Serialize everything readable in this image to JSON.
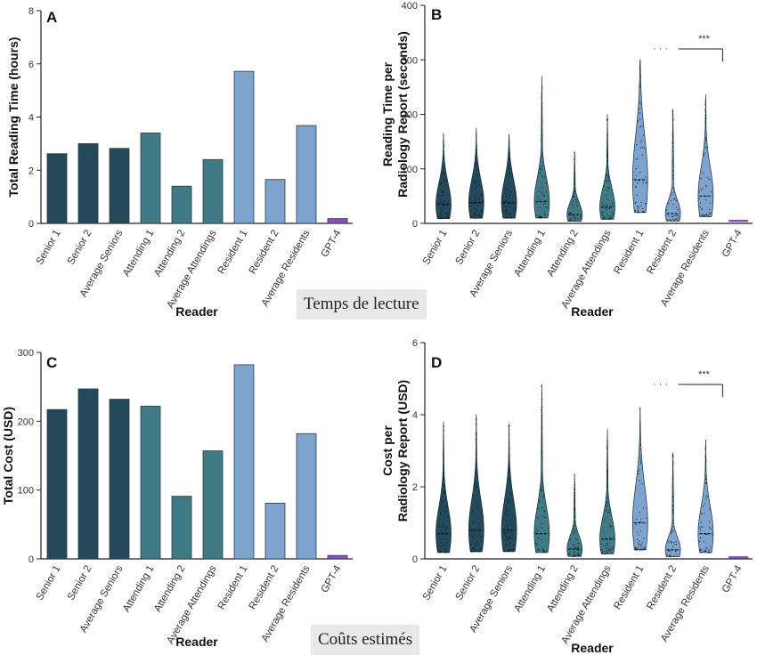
{
  "captions": {
    "reading": "Temps de lecture",
    "cost": "Coûts estimés"
  },
  "colors": {
    "senior": "#24495a",
    "attending": "#3f7a85",
    "resident": "#7fa3cf",
    "gpt4": "#8a4fc0",
    "dots": "#0d1b22"
  },
  "chart_data": [
    {
      "panel": "A",
      "type": "bar",
      "categories": [
        "Senior 1",
        "Senior 2",
        "Average Seniors",
        "Attending 1",
        "Attending 2",
        "Average Attendings",
        "Resident 1",
        "Resident 2",
        "Average Residents",
        "GPT-4"
      ],
      "values": [
        2.62,
        3.0,
        2.82,
        3.4,
        1.4,
        2.4,
        5.72,
        1.65,
        3.68,
        0.18
      ],
      "ylabel": "Total Reading Time (hours)",
      "xlabel": "Reader",
      "ylim": [
        0,
        8
      ],
      "yticks": [
        0,
        2,
        4,
        6,
        8
      ]
    },
    {
      "panel": "B",
      "type": "violin",
      "categories": [
        "Senior 1",
        "Senior 2",
        "Average Seniors",
        "Attending 1",
        "Attending 2",
        "Average Attendings",
        "Resident 1",
        "Resident 2",
        "Average Residents",
        "GPT-4"
      ],
      "max": [
        165,
        175,
        163,
        270,
        132,
        200,
        300,
        210,
        236,
        5
      ],
      "median": [
        35,
        38,
        38,
        40,
        16,
        30,
        80,
        18,
        50,
        3
      ],
      "ylabel": "Reading Time per Radiology Report (seconds)",
      "xlabel": "Reader",
      "ylim": [
        0,
        400
      ],
      "yticks": [
        0,
        100,
        200,
        300,
        400
      ],
      "annotation": {
        "dots": "· · ·",
        "stars": "***"
      }
    },
    {
      "panel": "C",
      "type": "bar",
      "categories": [
        "Senior 1",
        "Senior 2",
        "Average Seniors",
        "Attending 1",
        "Attending 2",
        "Average Attendings",
        "Resident 1",
        "Resident 2",
        "Average Residents",
        "GPT-4"
      ],
      "values": [
        217,
        247,
        232,
        222,
        91,
        157,
        282,
        81,
        182,
        5
      ],
      "ylabel": "Total Cost  (USD)",
      "xlabel": "Reader",
      "ylim": [
        0,
        300
      ],
      "yticks": [
        0,
        100,
        200,
        300
      ]
    },
    {
      "panel": "D",
      "type": "violin",
      "categories": [
        "Senior 1",
        "Senior 2",
        "Average Seniors",
        "Attending 1",
        "Attending 2",
        "Average Attendings",
        "Resident 1",
        "Resident 2",
        "Average Residents",
        "GPT-4"
      ],
      "max": [
        3.8,
        4.0,
        3.75,
        4.85,
        2.35,
        3.6,
        4.2,
        2.95,
        3.3,
        0.05
      ],
      "median": [
        0.7,
        0.8,
        0.8,
        0.7,
        0.27,
        0.55,
        1.0,
        0.25,
        0.7,
        0.02
      ],
      "ylabel": "Cost per Radiology Report (USD)",
      "xlabel": "Reader",
      "ylim": [
        0,
        6
      ],
      "yticks": [
        0,
        2,
        4,
        6
      ],
      "annotation": {
        "dots": "· · ·",
        "stars": "***"
      }
    }
  ]
}
